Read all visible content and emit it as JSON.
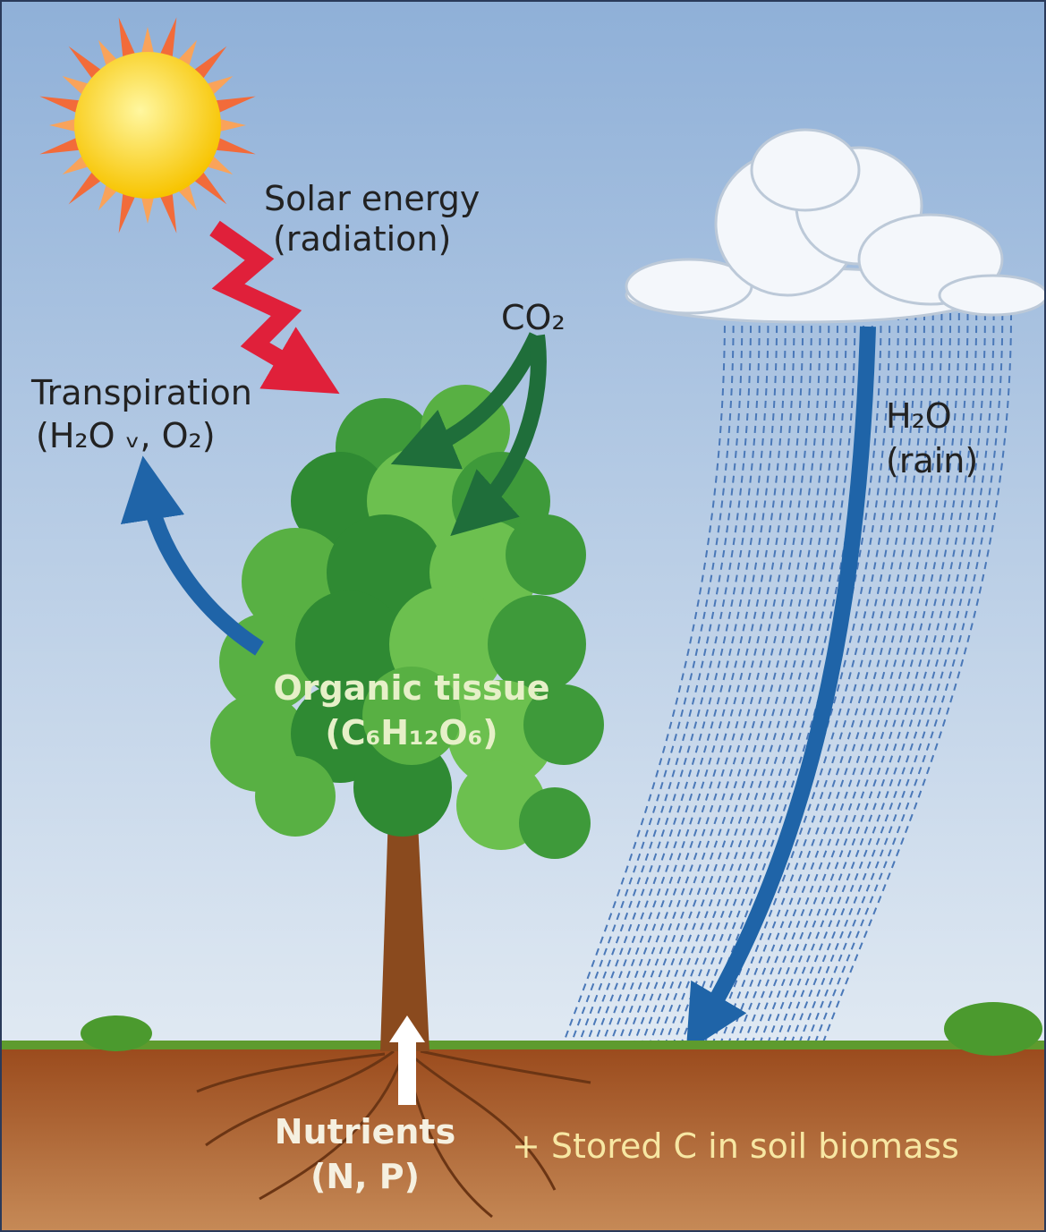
{
  "labels": {
    "solar": [
      "Solar energy",
      "(radiation)"
    ],
    "co2": [
      "CO₂"
    ],
    "transpiration": [
      "Transpiration",
      "(H₂O ᵥ, O₂)"
    ],
    "rain": [
      "H₂O",
      "(rain)"
    ],
    "tissue": [
      "Organic tissue",
      "(C₆H₁₂O₆)"
    ],
    "nutrients": [
      "Nutrients",
      "(N, P)"
    ],
    "stored": [
      "+ Stored C in soil biomass"
    ]
  }
}
